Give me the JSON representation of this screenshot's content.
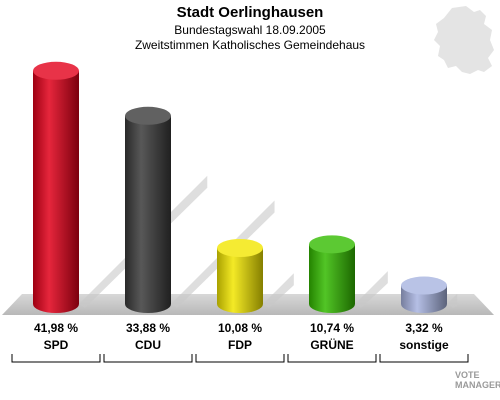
{
  "header": {
    "title": "Stadt Oerlinghausen",
    "subtitle": "Bundestagswahl 18.09.2005",
    "subtitle2": "Zweitstimmen Katholisches Gemeindehaus"
  },
  "chart_data": {
    "type": "bar",
    "title": "Stadt Oerlinghausen",
    "categories": [
      "SPD",
      "CDU",
      "FDP",
      "GRÜNE",
      "sonstige"
    ],
    "values": [
      41.98,
      33.88,
      10.08,
      10.74,
      3.32
    ],
    "value_labels": [
      "41,98 %",
      "33,88 %",
      "10,08 %",
      "10,74 %",
      "3,32 %"
    ],
    "colors": [
      "#e2001a",
      "#3a3a3a",
      "#f2e600",
      "#33bb00",
      "#a8b4e0"
    ],
    "ylim": [
      0,
      45
    ],
    "grid": false,
    "legend": "none"
  },
  "logo": {
    "line1": "VOTE",
    "line2": "MANAGER"
  }
}
